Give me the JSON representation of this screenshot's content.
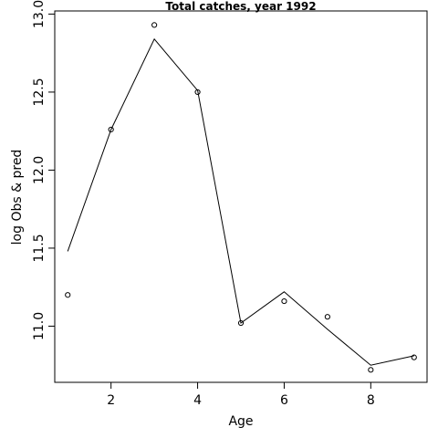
{
  "chart_data": {
    "type": "line",
    "title": "Total catches, year 1992",
    "xlabel": "Age",
    "ylabel": "log Obs & pred",
    "xlim": [
      0.7,
      9.3
    ],
    "ylim": [
      10.64,
      13.02
    ],
    "x_ticks": [
      2,
      4,
      6,
      8
    ],
    "y_ticks": [
      11.0,
      11.5,
      12.0,
      12.5,
      13.0
    ],
    "x_tick_labels": [
      "2",
      "4",
      "6",
      "8"
    ],
    "y_tick_labels": [
      "11.0",
      "11.5",
      "12.0",
      "12.5",
      "13.0"
    ],
    "grid": false,
    "legend": "none",
    "series": [
      {
        "render": "points",
        "x": [
          1,
          2,
          3,
          4,
          5,
          6,
          7,
          8,
          9
        ],
        "y": [
          11.2,
          12.26,
          12.93,
          12.5,
          11.02,
          11.16,
          11.06,
          10.72,
          10.8
        ]
      },
      {
        "render": "line",
        "x": [
          1,
          2,
          3,
          4,
          5,
          6,
          7,
          8,
          9
        ],
        "y": [
          11.48,
          12.26,
          12.84,
          12.51,
          11.02,
          11.22,
          10.98,
          10.75,
          10.81
        ]
      }
    ]
  }
}
